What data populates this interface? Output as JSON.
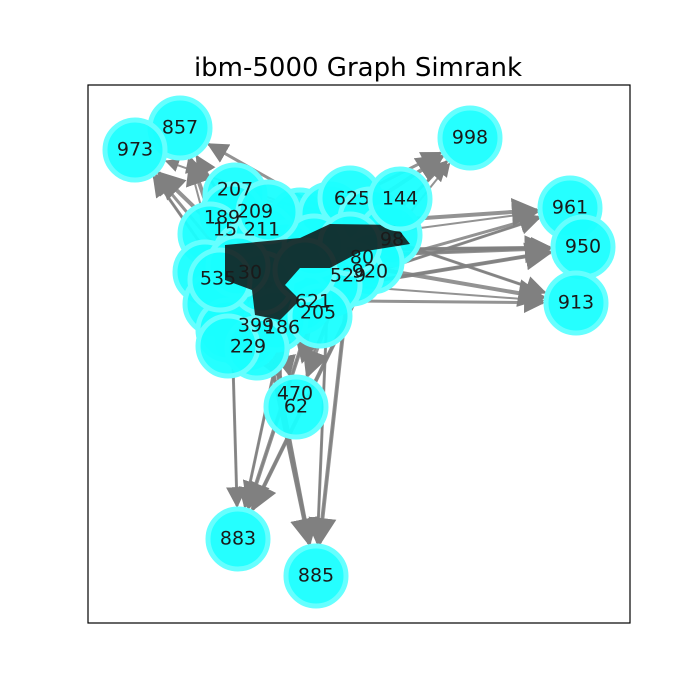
{
  "title": "ibm-5000 Graph Simrank",
  "colors": {
    "node_fill": "#19ffff",
    "node_outline": "#66ffff",
    "edge": "#808080",
    "label": "#1a1a1a",
    "frame": "#000000"
  },
  "outer_nodes": [
    "857",
    "973",
    "998",
    "144",
    "961",
    "950",
    "913",
    "470",
    "62",
    "883",
    "885"
  ],
  "cluster_labels": [
    "205",
    "207",
    "621",
    "529",
    "920",
    "535",
    "625",
    "98",
    "80",
    "189",
    "209",
    "211",
    "229",
    "399",
    "186",
    "15",
    "30"
  ]
}
